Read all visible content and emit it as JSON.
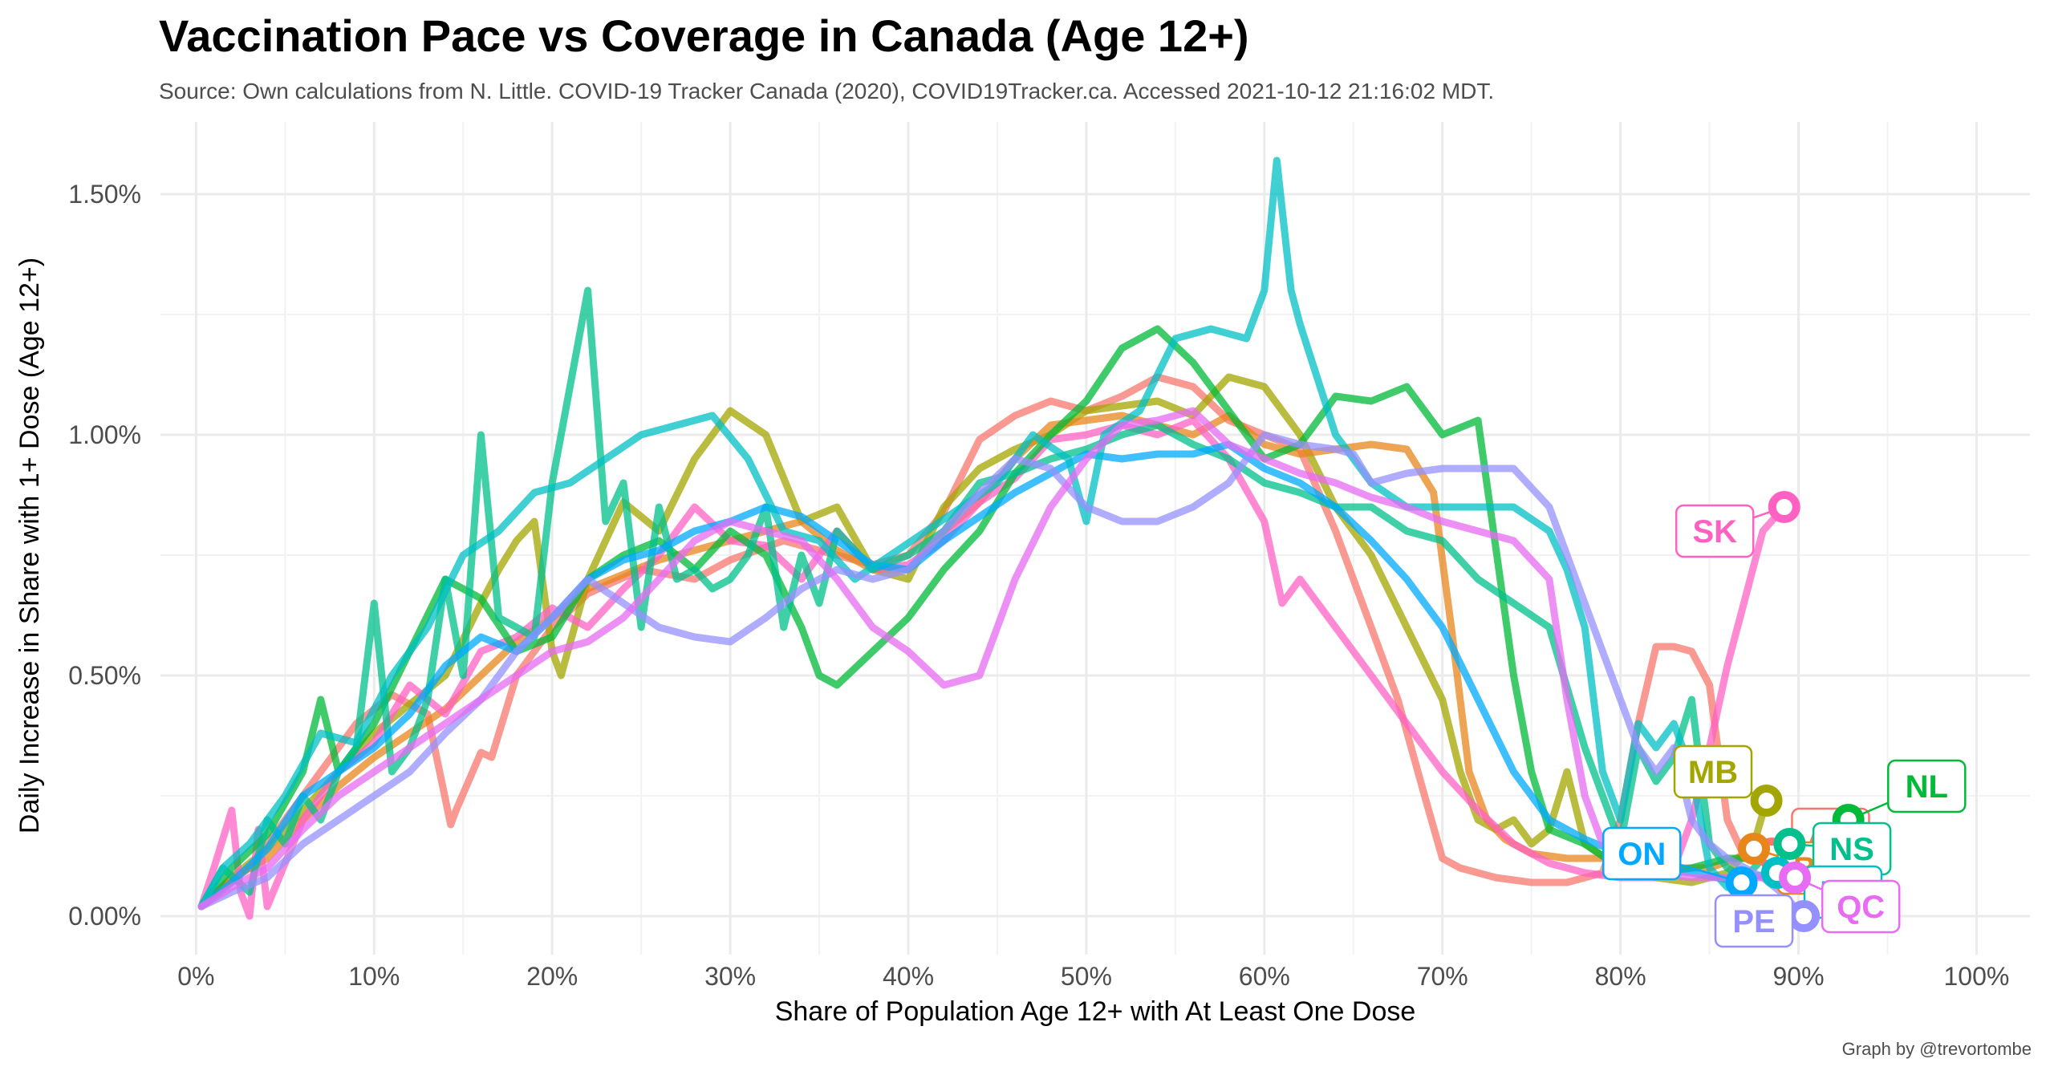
{
  "header": {
    "title": "Vaccination Pace vs Coverage in Canada (Age 12+)",
    "subtitle": "Source: Own calculations from N. Little. COVID-19 Tracker Canada (2020), COVID19Tracker.ca. Accessed 2021-10-12 21:16:02 MDT.",
    "caption": "Graph by @trevortombe"
  },
  "chart_data": {
    "type": "line",
    "xlabel": "Share of Population Age 12+ with At Least One Dose",
    "ylabel": "Daily Increase in Share with 1+ Dose (Age 12+)",
    "xlim": [
      -2,
      103
    ],
    "ylim": [
      -0.08,
      1.65
    ],
    "x_ticks": [
      0,
      10,
      20,
      30,
      40,
      50,
      60,
      70,
      80,
      90,
      100
    ],
    "x_tick_labels": [
      "0%",
      "10%",
      "20%",
      "30%",
      "40%",
      "50%",
      "60%",
      "70%",
      "80%",
      "90%",
      "100%"
    ],
    "y_ticks": [
      0,
      0.5,
      1.0,
      1.5
    ],
    "y_tick_labels": [
      "0.00%",
      "0.50%",
      "1.00%",
      "1.50%"
    ],
    "grid": true,
    "legend": "none (direct labels)",
    "series": [
      {
        "name": "AB",
        "color": "#F8766D",
        "end": [
          88.5,
          0.13
        ],
        "label_pos": [
          91.8,
          0.17
        ],
        "x": [
          0.3,
          1.5,
          3,
          5,
          7,
          9,
          11,
          13,
          14.3,
          14.6,
          16,
          16.6,
          18,
          20,
          22,
          25,
          28,
          30,
          33,
          35,
          38,
          40,
          42,
          44,
          46,
          48,
          50,
          52,
          54,
          56,
          58,
          60,
          62,
          64,
          66,
          67.5,
          69,
          70,
          71,
          73,
          75,
          77,
          79,
          80,
          81,
          82,
          83,
          84,
          85,
          86,
          87,
          88.5
        ],
        "y": [
          0.02,
          0.06,
          0.1,
          0.2,
          0.3,
          0.4,
          0.46,
          0.42,
          0.19,
          0.22,
          0.34,
          0.33,
          0.5,
          0.6,
          0.67,
          0.72,
          0.7,
          0.74,
          0.78,
          0.76,
          0.73,
          0.75,
          0.84,
          0.99,
          1.04,
          1.07,
          1.05,
          1.08,
          1.12,
          1.1,
          1.03,
          1.0,
          0.97,
          0.8,
          0.6,
          0.45,
          0.25,
          0.12,
          0.1,
          0.08,
          0.07,
          0.07,
          0.09,
          0.2,
          0.4,
          0.56,
          0.56,
          0.55,
          0.48,
          0.2,
          0.12,
          0.13
        ]
      },
      {
        "name": "MB",
        "color": "#A3A500",
        "end": [
          88.2,
          0.24
        ],
        "label_pos": [
          85.2,
          0.3
        ],
        "x": [
          0.3,
          2,
          4,
          6,
          8,
          10,
          12,
          14,
          16,
          17,
          18,
          19,
          20,
          20.5,
          22,
          24,
          26,
          28,
          30,
          32,
          34,
          36,
          38,
          40,
          42,
          44,
          46,
          48,
          50,
          52,
          54,
          56,
          58,
          60,
          62,
          64,
          66,
          68,
          70,
          71,
          72,
          73,
          74,
          75,
          76,
          77,
          78,
          80,
          82,
          84,
          86,
          87.5,
          88.2
        ],
        "y": [
          0.02,
          0.08,
          0.14,
          0.22,
          0.3,
          0.38,
          0.44,
          0.5,
          0.65,
          0.72,
          0.78,
          0.82,
          0.55,
          0.5,
          0.7,
          0.86,
          0.8,
          0.95,
          1.05,
          1.0,
          0.82,
          0.85,
          0.72,
          0.7,
          0.85,
          0.93,
          0.97,
          1.0,
          1.05,
          1.06,
          1.07,
          1.04,
          1.12,
          1.1,
          1.0,
          0.85,
          0.75,
          0.6,
          0.45,
          0.3,
          0.2,
          0.18,
          0.2,
          0.15,
          0.18,
          0.3,
          0.15,
          0.1,
          0.08,
          0.07,
          0.09,
          0.15,
          0.24
        ]
      },
      {
        "name": "BC",
        "color": "#E7861B",
        "end": [
          87.5,
          0.14
        ],
        "label_pos": [
          91,
          0.1
        ],
        "x": [
          0.3,
          2,
          4,
          6,
          8,
          10,
          12,
          14,
          16,
          18,
          20,
          22,
          24,
          26,
          28,
          30,
          32,
          34,
          36,
          38,
          40,
          42,
          44,
          46,
          48,
          50,
          52,
          54,
          56,
          58,
          60,
          62,
          64,
          66,
          68,
          69.5,
          70.5,
          71.5,
          72.5,
          73.5,
          75,
          77,
          79,
          81,
          83,
          85,
          86.5,
          87.5
        ],
        "y": [
          0.02,
          0.08,
          0.12,
          0.2,
          0.27,
          0.33,
          0.38,
          0.43,
          0.5,
          0.57,
          0.62,
          0.68,
          0.71,
          0.74,
          0.76,
          0.78,
          0.8,
          0.82,
          0.76,
          0.72,
          0.72,
          0.8,
          0.86,
          0.95,
          1.02,
          1.03,
          1.04,
          1.02,
          1.0,
          1.04,
          0.98,
          0.96,
          0.97,
          0.98,
          0.97,
          0.88,
          0.6,
          0.3,
          0.2,
          0.16,
          0.13,
          0.12,
          0.12,
          0.11,
          0.1,
          0.1,
          0.12,
          0.14
        ]
      },
      {
        "name": "SK",
        "color": "#FF61C3",
        "end": [
          89.2,
          0.85
        ],
        "label_pos": [
          85.3,
          0.8
        ],
        "x": [
          0.3,
          1,
          2,
          2.5,
          3,
          3.5,
          4,
          6,
          8,
          10,
          12,
          14,
          16,
          18,
          20,
          22,
          24,
          26,
          28,
          30,
          32,
          34,
          36,
          38,
          40,
          42,
          44,
          46,
          48,
          50,
          52,
          54,
          56,
          58,
          60,
          61,
          62,
          64,
          66,
          68,
          70,
          72,
          74,
          76,
          78,
          80,
          82,
          83,
          84,
          85,
          86,
          87,
          88,
          89.2
        ],
        "y": [
          0.02,
          0.1,
          0.22,
          0.05,
          0.0,
          0.18,
          0.02,
          0.2,
          0.3,
          0.36,
          0.48,
          0.42,
          0.55,
          0.58,
          0.64,
          0.6,
          0.68,
          0.75,
          0.85,
          0.78,
          0.77,
          0.7,
          0.8,
          0.72,
          0.73,
          0.78,
          0.86,
          0.91,
          0.99,
          1.0,
          1.02,
          1.0,
          1.03,
          0.95,
          0.82,
          0.65,
          0.7,
          0.6,
          0.5,
          0.4,
          0.3,
          0.22,
          0.15,
          0.11,
          0.09,
          0.08,
          0.08,
          0.1,
          0.2,
          0.35,
          0.52,
          0.66,
          0.8,
          0.85
        ]
      },
      {
        "name": "NL",
        "color": "#00BA38",
        "end": [
          92.8,
          0.2
        ],
        "label_pos": [
          97.2,
          0.27
        ],
        "x": [
          0.3,
          2,
          4,
          6,
          7,
          8,
          10,
          12,
          14,
          16,
          18,
          20,
          22,
          24,
          26,
          28,
          30,
          32,
          34,
          35,
          36,
          38,
          40,
          42,
          44,
          46,
          48,
          50,
          52,
          54,
          56,
          58,
          60,
          62,
          64,
          66,
          68,
          70,
          72,
          74,
          75,
          76,
          78,
          80,
          82,
          84,
          86,
          88,
          89,
          90,
          92.8
        ],
        "y": [
          0.02,
          0.1,
          0.17,
          0.3,
          0.45,
          0.3,
          0.4,
          0.55,
          0.7,
          0.66,
          0.55,
          0.58,
          0.7,
          0.75,
          0.78,
          0.72,
          0.8,
          0.75,
          0.6,
          0.5,
          0.48,
          0.55,
          0.62,
          0.72,
          0.8,
          0.92,
          1.0,
          1.07,
          1.18,
          1.22,
          1.15,
          1.05,
          0.95,
          0.98,
          1.08,
          1.07,
          1.1,
          1.0,
          1.03,
          0.5,
          0.3,
          0.18,
          0.15,
          0.1,
          0.09,
          0.1,
          0.12,
          0.12,
          0.13,
          0.14,
          0.2
        ]
      },
      {
        "name": "NS",
        "color": "#00C08B",
        "end": [
          89.5,
          0.15
        ],
        "label_pos": [
          93,
          0.14
        ],
        "x": [
          0.3,
          1.5,
          3,
          4,
          5,
          6,
          7,
          8,
          9,
          10,
          11,
          12,
          13,
          14,
          15,
          16,
          17,
          18,
          19,
          20,
          21,
          22,
          23,
          24,
          25,
          26,
          27,
          28,
          29,
          30,
          31,
          32,
          33,
          34,
          35,
          36,
          38,
          40,
          42,
          44,
          46,
          48,
          50,
          52,
          54,
          56,
          58,
          60,
          62,
          64,
          66,
          68,
          70,
          72,
          74,
          76,
          78,
          79,
          80,
          81,
          82,
          83,
          84,
          85,
          86,
          87,
          88,
          89.5
        ],
        "y": [
          0.02,
          0.1,
          0.05,
          0.2,
          0.15,
          0.25,
          0.2,
          0.3,
          0.35,
          0.65,
          0.3,
          0.35,
          0.45,
          0.7,
          0.5,
          1.0,
          0.62,
          0.6,
          0.58,
          0.9,
          1.1,
          1.3,
          0.82,
          0.9,
          0.6,
          0.85,
          0.7,
          0.72,
          0.68,
          0.7,
          0.75,
          0.85,
          0.6,
          0.75,
          0.65,
          0.8,
          0.72,
          0.75,
          0.8,
          0.9,
          0.92,
          0.95,
          0.97,
          1.0,
          1.02,
          0.98,
          0.95,
          0.9,
          0.88,
          0.85,
          0.85,
          0.8,
          0.78,
          0.7,
          0.65,
          0.6,
          0.35,
          0.25,
          0.15,
          0.35,
          0.28,
          0.33,
          0.45,
          0.15,
          0.1,
          0.08,
          0.12,
          0.15
        ]
      },
      {
        "name": "ON",
        "color": "#00A9FF",
        "end": [
          86.8,
          0.07
        ],
        "label_pos": [
          81.2,
          0.13
        ],
        "x": [
          0.3,
          2,
          4,
          6,
          8,
          10,
          12,
          14,
          16,
          18,
          20,
          22,
          24,
          26,
          28,
          30,
          32,
          34,
          36,
          38,
          40,
          42,
          44,
          46,
          48,
          50,
          52,
          54,
          56,
          58,
          60,
          62,
          64,
          66,
          68,
          70,
          72,
          74,
          76,
          78,
          80,
          82,
          84,
          86.8
        ],
        "y": [
          0.02,
          0.07,
          0.14,
          0.25,
          0.3,
          0.35,
          0.42,
          0.52,
          0.58,
          0.55,
          0.62,
          0.7,
          0.74,
          0.76,
          0.8,
          0.82,
          0.85,
          0.83,
          0.78,
          0.73,
          0.72,
          0.78,
          0.83,
          0.88,
          0.92,
          0.96,
          0.95,
          0.96,
          0.96,
          0.98,
          0.93,
          0.9,
          0.85,
          0.78,
          0.7,
          0.6,
          0.45,
          0.3,
          0.2,
          0.16,
          0.13,
          0.1,
          0.09,
          0.07
        ]
      },
      {
        "name": "NB",
        "color": "#00BFC4",
        "end": [
          88.8,
          0.09
        ],
        "label_pos": [
          92.5,
          0.05
        ],
        "x": [
          0.3,
          1.5,
          3,
          5,
          7,
          9,
          11,
          13,
          15,
          17,
          19,
          21,
          23,
          25,
          27,
          29,
          31,
          33,
          35,
          37,
          39,
          41,
          43,
          45,
          47,
          49,
          50,
          51,
          53,
          55,
          57,
          59,
          60,
          60.7,
          61.5,
          62,
          64,
          66,
          68,
          70,
          72,
          74,
          76,
          77,
          78,
          79,
          80,
          81,
          82,
          83,
          84,
          85,
          86,
          87,
          88.8
        ],
        "y": [
          0.02,
          0.1,
          0.15,
          0.25,
          0.38,
          0.36,
          0.5,
          0.6,
          0.75,
          0.8,
          0.88,
          0.9,
          0.95,
          1.0,
          1.02,
          1.04,
          0.95,
          0.8,
          0.78,
          0.7,
          0.75,
          0.8,
          0.85,
          0.9,
          1.0,
          0.95,
          0.82,
          1.0,
          1.05,
          1.2,
          1.22,
          1.2,
          1.3,
          1.57,
          1.3,
          1.23,
          1.0,
          0.9,
          0.85,
          0.85,
          0.85,
          0.85,
          0.8,
          0.72,
          0.6,
          0.3,
          0.2,
          0.4,
          0.35,
          0.4,
          0.3,
          0.1,
          0.06,
          0.08,
          0.09
        ]
      },
      {
        "name": "PE",
        "color": "#9590FF",
        "end": [
          90.3,
          0.0
        ],
        "label_pos": [
          87.5,
          -0.01
        ],
        "x": [
          0.3,
          2,
          4,
          6,
          8,
          10,
          12,
          14,
          16,
          18,
          20,
          22,
          24,
          26,
          28,
          30,
          32,
          34,
          36,
          38,
          40,
          42,
          44,
          46,
          48,
          50,
          52,
          54,
          56,
          58,
          60,
          62,
          64,
          65,
          66,
          68,
          70,
          72,
          74,
          76,
          77,
          78,
          79,
          80,
          81,
          82,
          83,
          84,
          85,
          86,
          87,
          88,
          89,
          90.3
        ],
        "y": [
          0.02,
          0.05,
          0.08,
          0.15,
          0.2,
          0.25,
          0.3,
          0.38,
          0.45,
          0.55,
          0.62,
          0.7,
          0.65,
          0.6,
          0.58,
          0.57,
          0.62,
          0.68,
          0.72,
          0.7,
          0.72,
          0.8,
          0.88,
          0.95,
          0.93,
          0.85,
          0.82,
          0.82,
          0.85,
          0.9,
          1.0,
          0.98,
          0.97,
          0.96,
          0.9,
          0.92,
          0.93,
          0.93,
          0.93,
          0.85,
          0.75,
          0.65,
          0.55,
          0.45,
          0.35,
          0.3,
          0.35,
          0.2,
          0.15,
          0.12,
          0.1,
          0.08,
          0.05,
          0.0
        ]
      },
      {
        "name": "QC",
        "color": "#E76BF3",
        "end": [
          89.8,
          0.08
        ],
        "label_pos": [
          93.5,
          0.02
        ],
        "x": [
          0.3,
          2,
          4,
          6,
          8,
          10,
          12,
          14,
          16,
          18,
          20,
          22,
          24,
          26,
          28,
          30,
          32,
          34,
          36,
          38,
          40,
          42,
          44,
          46,
          48,
          50,
          52,
          54,
          56,
          58,
          60,
          62,
          64,
          66,
          68,
          70,
          72,
          74,
          76,
          77,
          78,
          79,
          80,
          81,
          82,
          84,
          86,
          88,
          89.8
        ],
        "y": [
          0.02,
          0.06,
          0.1,
          0.18,
          0.25,
          0.3,
          0.35,
          0.4,
          0.45,
          0.5,
          0.55,
          0.57,
          0.62,
          0.7,
          0.78,
          0.82,
          0.8,
          0.78,
          0.7,
          0.6,
          0.55,
          0.48,
          0.5,
          0.7,
          0.85,
          0.95,
          1.02,
          1.03,
          1.05,
          0.98,
          0.95,
          0.92,
          0.9,
          0.87,
          0.85,
          0.82,
          0.8,
          0.78,
          0.7,
          0.45,
          0.25,
          0.15,
          0.12,
          0.1,
          0.09,
          0.08,
          0.08,
          0.08,
          0.08
        ]
      }
    ]
  }
}
